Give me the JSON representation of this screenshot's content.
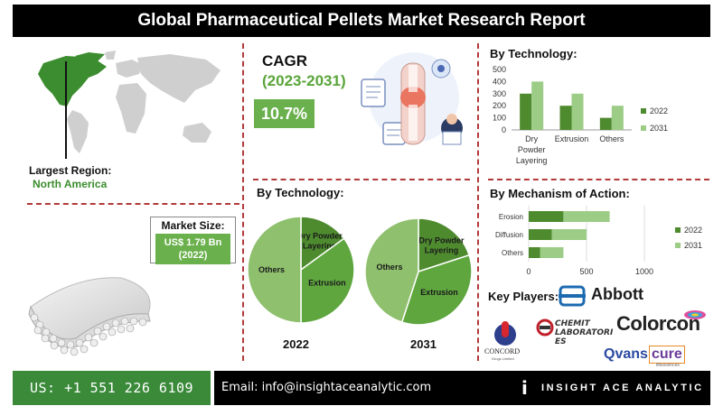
{
  "header": {
    "title": "Global Pharmaceutical Pellets Market Research Report"
  },
  "region": {
    "label": "Largest Region:",
    "value": "North America"
  },
  "market_size": {
    "label": "Market Size:",
    "value_line1": "US$ 1.79 Bn",
    "value_line2": "(2022)"
  },
  "cagr": {
    "title": "CAGR",
    "years": "(2023-2031)",
    "value": "10.7%"
  },
  "tech_pie_title": "By Technology:",
  "tech_bar_title": "By Technology:",
  "mech_title": "By Mechanism of Action:",
  "key_players": {
    "label": "Key Players:",
    "companies": [
      "Abbott",
      "CHEMIT LABORATORIES",
      "Colorcon",
      "CONCORD",
      "Qvans",
      "cure"
    ],
    "concord_sub": "Drugs Limited",
    "qvanscure_sub": "lifesciences"
  },
  "footer": {
    "phone": "US: +1 551 226 6109",
    "email": "Email: info@insightaceanalytic.com",
    "brand": "INSIGHT ACE ANALYTIC",
    "brand_mark": "i"
  },
  "colors": {
    "dark_green": "#4e8a2e",
    "light_green": "#9ccc85",
    "pie_dark": "#4e8b2f",
    "pie_mid": "#5fa63f",
    "pie_light": "#8fc06e"
  },
  "chart_data": [
    {
      "type": "bar",
      "title": "By Technology:",
      "categories": [
        [
          "Dry",
          "Powder",
          "Layering"
        ],
        [
          "Extrusion"
        ],
        [
          "Others"
        ]
      ],
      "series": [
        {
          "name": "2022",
          "values": [
            300,
            200,
            100
          ]
        },
        {
          "name": "2031",
          "values": [
            400,
            300,
            200
          ]
        }
      ],
      "ylim": [
        0,
        500
      ],
      "yticks": [
        "0",
        "100",
        "200",
        "300",
        "400",
        "500"
      ],
      "grid": false,
      "legend": "right"
    },
    {
      "type": "bar",
      "orientation": "horizontal",
      "title": "By Mechanism of Action:",
      "categories": [
        "Erosion",
        "Diffusion",
        "Others"
      ],
      "series": [
        {
          "name": "2022",
          "values": [
            300,
            200,
            100
          ]
        },
        {
          "name": "2031",
          "values": [
            400,
            300,
            200
          ]
        }
      ],
      "stacked": true,
      "xlim": [
        0,
        1000
      ],
      "xticks": [
        "0",
        "500",
        "1000"
      ],
      "grid": true,
      "legend": "right"
    },
    {
      "type": "pie",
      "title": "By Technology:",
      "caption": "2022",
      "labels": [
        [
          "Dry Powder",
          "Layering"
        ],
        [
          "Extrusion"
        ],
        [
          "Others"
        ]
      ],
      "values": [
        15,
        35,
        50
      ]
    },
    {
      "type": "pie",
      "title": "By Technology:",
      "caption": "2031",
      "labels": [
        [
          "Dry Powder",
          "Layering"
        ],
        [
          "Extrusion"
        ],
        [
          "Others"
        ]
      ],
      "values": [
        20,
        35,
        45
      ]
    }
  ]
}
